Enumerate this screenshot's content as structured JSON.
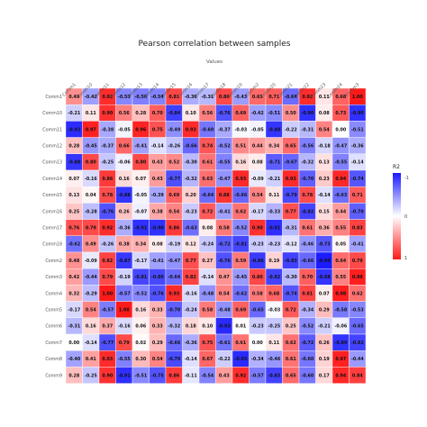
{
  "chart_data": {
    "type": "heatmap",
    "title": "Pearson correlation between samples",
    "xlabel": "Values",
    "ylabel": "",
    "x_categories": [
      "Comm1",
      "Comm10",
      "Comm11",
      "Comm12",
      "Comm13",
      "Comm14",
      "Comm15",
      "Comm16",
      "Comm17",
      "Comm18",
      "Comm19",
      "Comm2",
      "Comm20",
      "Comm21",
      "Comm22",
      "Comm23",
      "Comm24",
      "Comm3"
    ],
    "y_categories": [
      "Comm1",
      "Comm10",
      "Comm11",
      "Comm12",
      "Comm13",
      "Comm14",
      "Comm15",
      "Comm16",
      "Comm17",
      "Comm18",
      "Comm2",
      "Comm3",
      "Comm4",
      "Comm5",
      "Comm6",
      "Comm7",
      "Comm8",
      "Comm9"
    ],
    "values": [
      [
        0.49,
        -0.42,
        0.92,
        -0.53,
        -0.56,
        -0.54,
        0.81,
        -0.36,
        -0.31,
        0.8,
        -0.43,
        0.65,
        0.71,
        -0.64,
        0.92,
        0.11,
        0.68,
        1.0
      ],
      [
        -0.21,
        0.11,
        0.9,
        0.56,
        0.28,
        0.7,
        -0.84,
        0.1,
        0.56,
        -0.76,
        0.69,
        -0.42,
        -0.51,
        0.5,
        -0.9,
        0.08,
        0.73,
        -0.9
      ],
      [
        -0.92,
        0.97,
        -0.38,
        -0.05,
        0.96,
        0.75,
        -0.49,
        0.93,
        -0.6,
        -0.37,
        -0.03,
        -0.05,
        -0.88,
        -0.22,
        -0.31,
        0.54,
        0.0,
        -0.51
      ],
      [
        0.28,
        -0.45,
        -0.37,
        0.66,
        -0.41,
        -0.14,
        -0.26,
        -0.66,
        0.74,
        -0.52,
        0.51,
        0.44,
        0.34,
        0.65,
        -0.56,
        -0.18,
        -0.47,
        -0.36
      ],
      [
        -0.88,
        0.8,
        -0.25,
        -0.06,
        0.8,
        0.43,
        0.52,
        -0.3,
        0.61,
        -0.55,
        0.16,
        0.08,
        -0.71,
        -0.67,
        -0.32,
        0.13,
        -0.55,
        -0.14
      ],
      [
        0.07,
        -0.16,
        0.86,
        0.16,
        0.07,
        0.43,
        -0.77,
        -0.32,
        0.63,
        -0.47,
        0.93,
        -0.09,
        -0.21,
        0.93,
        -0.7,
        0.23,
        0.94,
        -0.74
      ],
      [
        0.13,
        0.04,
        0.78,
        -0.88,
        -0.05,
        -0.39,
        0.69,
        0.2,
        -0.64,
        0.88,
        -0.66,
        0.54,
        0.11,
        -0.79,
        0.78,
        -0.14,
        -0.63,
        0.71
      ],
      [
        0.25,
        -0.28,
        -0.76,
        0.26,
        -0.07,
        0.38,
        0.54,
        -0.23,
        0.72,
        -0.41,
        0.62,
        -0.17,
        -0.33,
        0.77,
        -0.82,
        0.15,
        0.44,
        -0.7
      ],
      [
        0.76,
        0.79,
        0.92,
        -0.36,
        -0.91,
        -0.9,
        0.86,
        -0.63,
        0.08,
        0.58,
        -0.52,
        0.9,
        -0.91,
        -0.31,
        0.61,
        0.36,
        0.55,
        0.83
      ],
      [
        -0.62,
        0.49,
        -0.26,
        0.38,
        0.34,
        0.08,
        -0.19,
        0.12,
        -0.24,
        -0.72,
        -0.81,
        -0.23,
        -0.23,
        -0.12,
        -0.46,
        -0.73,
        0.05,
        -0.41
      ],
      [
        0.48,
        -0.09,
        0.82,
        -0.87,
        -0.17,
        -0.41,
        -0.47,
        0.77,
        0.27,
        -0.76,
        0.59,
        -0.86,
        0.19,
        -0.83,
        -0.66,
        -0.99,
        0.64,
        0.79
      ],
      [
        0.42,
        -0.44,
        0.79,
        -0.19,
        -0.81,
        -0.8,
        -0.64,
        0.82,
        -0.14,
        0.47,
        -0.45,
        0.8,
        -0.82,
        -0.3,
        0.7,
        -0.88,
        0.55,
        0.98
      ],
      [
        0.32,
        -0.29,
        1.0,
        -0.57,
        -0.52,
        -0.76,
        0.93,
        -0.16,
        -0.48,
        0.54,
        -0.62,
        0.58,
        0.68,
        -0.74,
        0.81,
        0.07,
        0.98,
        0.62
      ],
      [
        -0.17,
        0.54,
        -0.57,
        1.0,
        0.16,
        0.33,
        -0.7,
        -0.24,
        0.58,
        -0.48,
        0.69,
        -0.65,
        -0.03,
        0.72,
        -0.34,
        0.29,
        -0.58,
        -0.53
      ],
      [
        -0.31,
        0.16,
        0.37,
        -0.16,
        0.06,
        0.33,
        -0.32,
        0.18,
        0.1,
        -0.93,
        0.01,
        -0.23,
        -0.25,
        0.25,
        -0.52,
        -0.21,
        -0.06,
        -0.65
      ],
      [
        0.0,
        -0.14,
        -0.77,
        0.79,
        0.02,
        0.29,
        -0.66,
        -0.36,
        0.75,
        -0.61,
        0.61,
        0.0,
        0.11,
        0.62,
        -0.72,
        0.26,
        -0.89,
        -0.82
      ],
      [
        -0.4,
        0.41,
        0.93,
        -0.55,
        0.3,
        0.54,
        -0.79,
        -0.14,
        0.67,
        -0.22,
        -0.93,
        -0.34,
        -0.46,
        0.61,
        -0.6,
        0.19,
        0.97,
        -0.44
      ],
      [
        0.28,
        -0.25,
        0.9,
        -0.91,
        -0.51,
        -0.75,
        0.86,
        -0.11,
        -0.54,
        0.43,
        0.92,
        -0.57,
        -0.83,
        0.65,
        -0.6,
        0.17,
        0.94,
        0.84
      ]
    ],
    "legend": {
      "title": "R2",
      "ticks": [
        "-1",
        "0",
        "1"
      ],
      "position": "right"
    },
    "colors": {
      "low": "#1a1aff",
      "mid": "#ffffff",
      "high": "#ff1a1a"
    }
  }
}
